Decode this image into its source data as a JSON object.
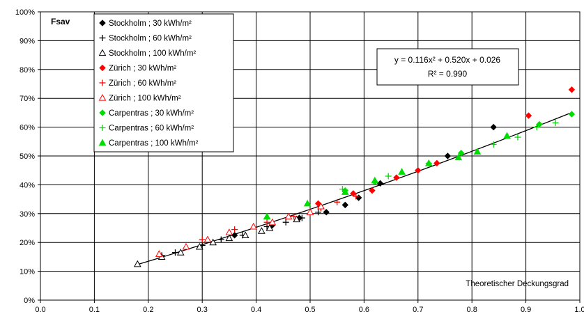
{
  "chart_data": {
    "type": "scatter",
    "ylabel": "Fsav",
    "xlabel": "Theoretischer Deckungsgrad",
    "xlim": [
      0,
      1
    ],
    "ylim": [
      0,
      1
    ],
    "x_ticks": [
      "0.0",
      "0.1",
      "0.2",
      "0.3",
      "0.4",
      "0.5",
      "0.6",
      "0.7",
      "0.8",
      "0.9",
      "1.0"
    ],
    "y_ticks": [
      "0%",
      "10%",
      "20%",
      "30%",
      "40%",
      "50%",
      "60%",
      "70%",
      "80%",
      "90%",
      "100%"
    ],
    "grid": true,
    "legend_position": "top-left",
    "trendline": {
      "equation": "y = 0.116x² + 0.520x + 0.026",
      "r2_label": "R² = 0.990",
      "coefficients": [
        0.116,
        0.52,
        0.026
      ],
      "x_range": [
        0.18,
        0.985
      ],
      "color": "#000000"
    },
    "series": [
      {
        "name": "Stockholm ; 30 kWh/m²",
        "marker": "diamond",
        "filled": true,
        "color": "#000000",
        "points": [
          [
            0.36,
            0.225
          ],
          [
            0.43,
            0.26
          ],
          [
            0.48,
            0.285
          ],
          [
            0.53,
            0.305
          ],
          [
            0.565,
            0.33
          ],
          [
            0.59,
            0.355
          ],
          [
            0.63,
            0.405
          ],
          [
            0.755,
            0.5
          ],
          [
            0.84,
            0.6
          ]
        ]
      },
      {
        "name": "Stockholm ; 60 kWh/m²",
        "marker": "plus",
        "filled": false,
        "color": "#000000",
        "points": [
          [
            0.225,
            0.155
          ],
          [
            0.25,
            0.165
          ],
          [
            0.3,
            0.19
          ],
          [
            0.335,
            0.21
          ],
          [
            0.375,
            0.225
          ],
          [
            0.42,
            0.255
          ],
          [
            0.455,
            0.27
          ],
          [
            0.485,
            0.285
          ],
          [
            0.515,
            0.305
          ]
        ]
      },
      {
        "name": "Stockholm ; 100 kWh/m²",
        "marker": "triangle",
        "filled": false,
        "color": "#000000",
        "points": [
          [
            0.18,
            0.125
          ],
          [
            0.225,
            0.15
          ],
          [
            0.26,
            0.165
          ],
          [
            0.295,
            0.185
          ],
          [
            0.32,
            0.2
          ],
          [
            0.35,
            0.215
          ],
          [
            0.38,
            0.225
          ],
          [
            0.41,
            0.24
          ],
          [
            0.425,
            0.25
          ],
          [
            0.475,
            0.28
          ]
        ]
      },
      {
        "name": "Zürich ; 30 kWh/m²",
        "marker": "diamond",
        "filled": true,
        "color": "#ff0000",
        "points": [
          [
            0.515,
            0.335
          ],
          [
            0.58,
            0.37
          ],
          [
            0.615,
            0.38
          ],
          [
            0.66,
            0.425
          ],
          [
            0.7,
            0.45
          ],
          [
            0.735,
            0.475
          ],
          [
            0.905,
            0.64
          ],
          [
            0.985,
            0.73
          ]
        ]
      },
      {
        "name": "Zürich ; 60 kWh/m²",
        "marker": "plus",
        "filled": false,
        "color": "#ff0000",
        "points": [
          [
            0.3,
            0.21
          ],
          [
            0.36,
            0.245
          ],
          [
            0.42,
            0.27
          ],
          [
            0.47,
            0.29
          ],
          [
            0.52,
            0.32
          ],
          [
            0.55,
            0.34
          ],
          [
            0.585,
            0.36
          ]
        ]
      },
      {
        "name": "Zürich ; 100 kWh/m²",
        "marker": "triangle",
        "filled": false,
        "color": "#ff0000",
        "points": [
          [
            0.22,
            0.16
          ],
          [
            0.27,
            0.185
          ],
          [
            0.31,
            0.21
          ],
          [
            0.35,
            0.235
          ],
          [
            0.395,
            0.255
          ],
          [
            0.43,
            0.27
          ],
          [
            0.46,
            0.29
          ],
          [
            0.5,
            0.305
          ],
          [
            0.52,
            0.325
          ]
        ]
      },
      {
        "name": "Carpentras ; 30 kWh/m²",
        "marker": "diamond",
        "filled": true,
        "color": "#00dd00",
        "points": [
          [
            0.565,
            0.38
          ],
          [
            0.62,
            0.41
          ],
          [
            0.78,
            0.51
          ],
          [
            0.925,
            0.61
          ],
          [
            0.985,
            0.645
          ]
        ]
      },
      {
        "name": "Carpentras ; 60 kWh/m²",
        "marker": "plus",
        "filled": false,
        "color": "#00dd00",
        "points": [
          [
            0.56,
            0.385
          ],
          [
            0.645,
            0.43
          ],
          [
            0.72,
            0.475
          ],
          [
            0.84,
            0.54
          ],
          [
            0.885,
            0.565
          ],
          [
            0.92,
            0.6
          ],
          [
            0.955,
            0.615
          ]
        ]
      },
      {
        "name": "Carpentras ; 100 kWh/m²",
        "marker": "triangle",
        "filled": true,
        "color": "#00dd00",
        "points": [
          [
            0.42,
            0.29
          ],
          [
            0.495,
            0.335
          ],
          [
            0.565,
            0.375
          ],
          [
            0.62,
            0.415
          ],
          [
            0.67,
            0.445
          ],
          [
            0.72,
            0.475
          ],
          [
            0.775,
            0.495
          ],
          [
            0.81,
            0.515
          ],
          [
            0.865,
            0.57
          ]
        ]
      }
    ]
  }
}
